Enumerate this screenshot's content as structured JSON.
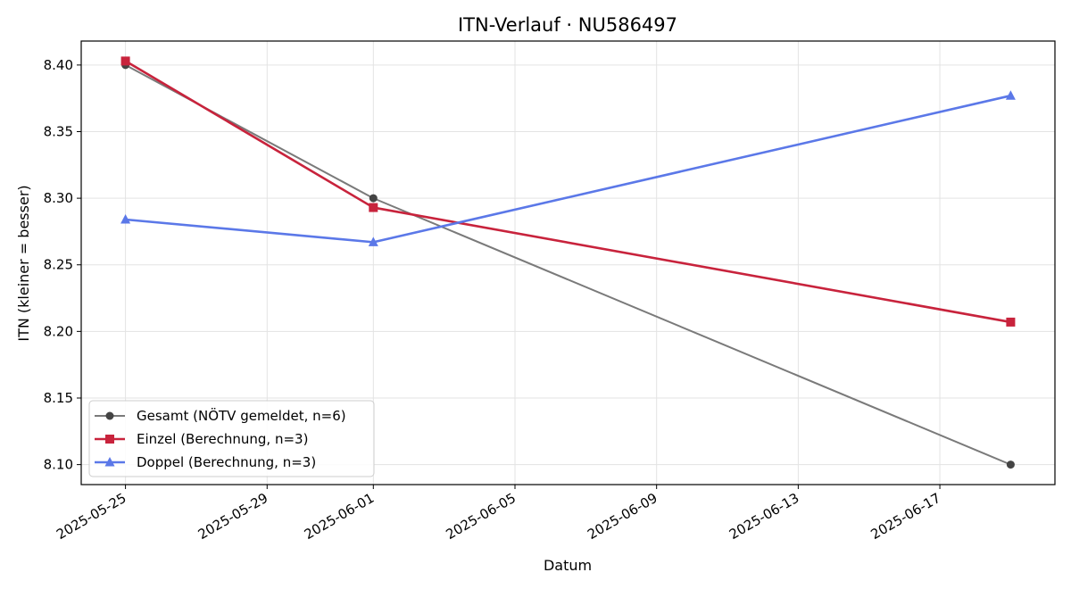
{
  "chart_data": {
    "type": "line",
    "title": "ITN-Verlauf · NU586497",
    "xlabel": "Datum",
    "ylabel": "ITN  (kleiner = besser)",
    "x": [
      "2025-05-25",
      "2025-06-01",
      "2025-06-19"
    ],
    "xlim": [
      "2025-05-23.75",
      "2025-06-20.25"
    ],
    "ylim": [
      8.085,
      8.418
    ],
    "x_ticks": [
      "2025-05-25",
      "2025-05-29",
      "2025-06-01",
      "2025-06-05",
      "2025-06-09",
      "2025-06-13",
      "2025-06-17"
    ],
    "y_ticks": [
      "8.10",
      "8.15",
      "8.20",
      "8.25",
      "8.30",
      "8.35",
      "8.40"
    ],
    "grid": true,
    "legend_position": "lower-left",
    "series": [
      {
        "name": "Gesamt (NÖTV gemeldet, n=6)",
        "values": [
          8.4,
          8.3,
          8.1
        ],
        "color": "#7a7a7a",
        "marker_color": "#444444",
        "marker": "circle"
      },
      {
        "name": "Einzel (Berechnung, n=3)",
        "values": [
          8.403,
          8.293,
          8.207
        ],
        "color": "#c8233c",
        "marker_color": "#c8233c",
        "marker": "square"
      },
      {
        "name": "Doppel (Berechnung, n=3)",
        "values": [
          8.284,
          8.267,
          8.377
        ],
        "color": "#5b78e8",
        "marker_color": "#5b78e8",
        "marker": "triangle"
      }
    ]
  }
}
